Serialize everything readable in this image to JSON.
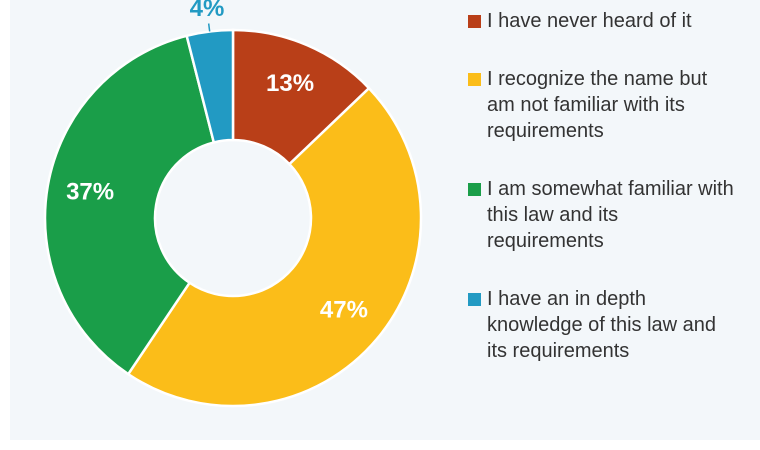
{
  "chart_data": {
    "type": "donut",
    "categories": [
      "I have never heard of it",
      "I recognize the name but am not familiar with its requirements",
      "I am somewhat familiar with this law and its requirements",
      "I have an in depth knowledge of this law and its requirements"
    ],
    "values": [
      13,
      47,
      37,
      4
    ],
    "value_labels": [
      "13%",
      "47%",
      "37%",
      "4%"
    ],
    "colors": [
      "#b93f18",
      "#fbbd19",
      "#1a9e49",
      "#229ac3"
    ]
  }
}
